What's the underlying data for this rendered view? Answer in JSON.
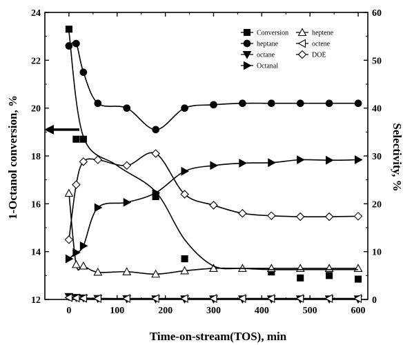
{
  "chart_data": {
    "type": "line",
    "title": "",
    "xlabel": "Time-on-stream(TOS), min",
    "ylabel_left": "1-Octanol conversion, %",
    "ylabel_right": "Selectivity, %",
    "xlim": [
      -50,
      620
    ],
    "ylim_left": [
      12,
      24
    ],
    "ylim_right": [
      0,
      60
    ],
    "x_ticks": [
      "0",
      "100",
      "200",
      "300",
      "400",
      "500",
      "600"
    ],
    "y_left_ticks": [
      "12",
      "14",
      "16",
      "18",
      "20",
      "22",
      "24"
    ],
    "y_right_ticks": [
      "0",
      "10",
      "20",
      "30",
      "40",
      "50",
      "60"
    ],
    "legend_position": "top-right",
    "grid": false,
    "series": [
      {
        "name": "Conversion",
        "axis": "left",
        "marker": "square-filled",
        "x": [
          0,
          15,
          30,
          180,
          240,
          420,
          480,
          540,
          600
        ],
        "y": [
          23.3,
          18.7,
          18.7,
          16.3,
          13.7,
          13.15,
          12.9,
          13.0,
          12.85
        ]
      },
      {
        "name": "heptane",
        "axis": "right",
        "marker": "circle-filled",
        "x": [
          0,
          15,
          30,
          60,
          120,
          180,
          240,
          300,
          360,
          420,
          480,
          540,
          600
        ],
        "y": [
          53.0,
          53.5,
          47.5,
          41.0,
          40.0,
          35.5,
          40.0,
          40.7,
          41.0,
          41.0,
          41.0,
          41.0,
          41.0
        ]
      },
      {
        "name": "octane",
        "axis": "right",
        "marker": "triangle-down-filled",
        "x": [
          0,
          15,
          30,
          60,
          120,
          180,
          240,
          300,
          360,
          420,
          480,
          540,
          600
        ],
        "y": [
          0.6,
          0.4,
          0.3,
          0.2,
          0.15,
          0.1,
          0.1,
          0.1,
          0.1,
          0.1,
          0.1,
          0.1,
          0.1
        ]
      },
      {
        "name": "Octanal",
        "axis": "right",
        "marker": "triangle-right-filled",
        "x": [
          0,
          15,
          30,
          60,
          120,
          180,
          240,
          300,
          360,
          420,
          480,
          540,
          600
        ],
        "y": [
          8.5,
          9.8,
          11.2,
          19.2,
          20.3,
          22.3,
          26.8,
          28.0,
          28.5,
          28.6,
          29.2,
          29.1,
          29.2
        ]
      },
      {
        "name": "heptene",
        "axis": "right",
        "marker": "triangle-up-open",
        "x": [
          0,
          15,
          30,
          60,
          120,
          180,
          240,
          300,
          360,
          420,
          480,
          540,
          600
        ],
        "y": [
          22.2,
          7.3,
          7.0,
          5.7,
          5.8,
          5.3,
          6.0,
          6.5,
          6.5,
          6.5,
          6.5,
          6.5,
          6.5
        ]
      },
      {
        "name": "octene",
        "axis": "right",
        "marker": "triangle-left-open",
        "x": [
          0,
          15,
          30,
          60,
          120,
          180,
          240,
          300,
          360,
          420,
          480,
          540,
          600
        ],
        "y": [
          0.4,
          0.3,
          0.25,
          0.2,
          0.2,
          0.2,
          0.2,
          0.2,
          0.2,
          0.2,
          0.2,
          0.2,
          0.2
        ]
      },
      {
        "name": "DOE",
        "axis": "right",
        "marker": "diamond-open",
        "x": [
          0,
          15,
          30,
          60,
          120,
          180,
          240,
          300,
          360,
          420,
          480,
          540,
          600
        ],
        "y": [
          12.5,
          24.0,
          28.8,
          29.2,
          28.0,
          30.5,
          22.0,
          19.7,
          18.0,
          17.5,
          17.3,
          17.3,
          17.4
        ]
      }
    ],
    "arrows": [
      {
        "points_to": "left-axis",
        "y_axis": "left",
        "y": 19.1
      }
    ]
  },
  "colors": {
    "ink": "#000000",
    "background": "#ffffff"
  }
}
